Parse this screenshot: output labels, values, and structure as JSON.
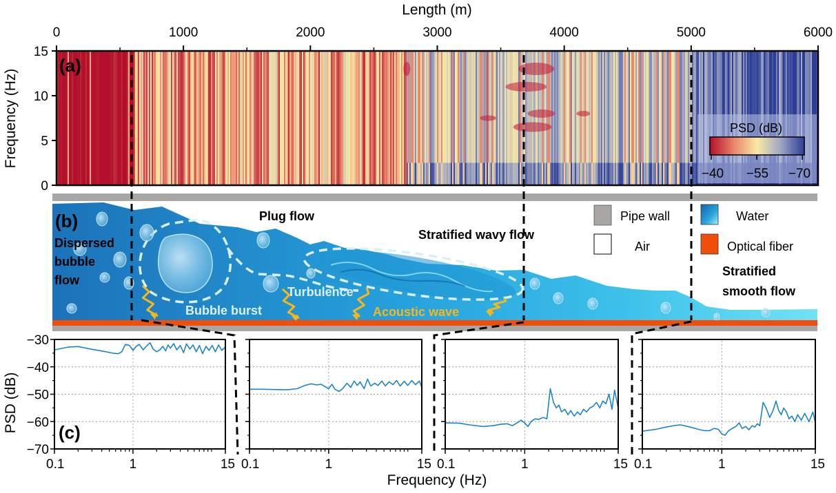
{
  "chart_data": [
    {
      "panel": "(a)",
      "type": "heatmap",
      "title": "",
      "xlabel": "Length (m)",
      "ylabel": "Frequency (Hz)",
      "xlim": [
        0,
        6000
      ],
      "ylim": [
        0,
        15
      ],
      "x_ticks": [
        "0",
        "1000",
        "2000",
        "3000",
        "4000",
        "5000",
        "6000"
      ],
      "x_tick_values": [
        0,
        1000,
        2000,
        3000,
        4000,
        5000,
        6000
      ],
      "x_minor_tick_values": [
        500,
        1500,
        2500,
        3500,
        4500,
        5500
      ],
      "y_ticks": [
        "0",
        "5",
        "10",
        "15"
      ],
      "y_tick_values": [
        0,
        5,
        10,
        15
      ],
      "colorbar": {
        "label": "PSD (dB)",
        "ticks": [
          "−40",
          "−55",
          "−70"
        ],
        "tick_values": [
          -40,
          -55,
          -70
        ],
        "range": [
          -40,
          -70
        ],
        "colors": [
          "#b2102b",
          "#e8826a",
          "#fbe9a6",
          "#9ea5c4",
          "#2c3d96"
        ]
      },
      "regions": [
        {
          "name": "Dispersed bubble flow",
          "x_range": [
            0,
            600
          ],
          "dominant_psd_db": -40
        },
        {
          "name": "Plug flow",
          "x_range": [
            600,
            2750
          ],
          "dominant_psd_db": -50
        },
        {
          "name": "Stratified wavy flow",
          "x_range": [
            2750,
            5000
          ],
          "dominant_psd_db": -60
        },
        {
          "name": "Stratified smooth flow",
          "x_range": [
            5000,
            6000
          ],
          "dominant_psd_db": -67
        }
      ],
      "boundaries_m": [
        600,
        2750,
        5000
      ]
    },
    {
      "panel": "(c)",
      "type": "line",
      "xlabel": "Frequency (Hz)",
      "ylabel": "PSD (dB)",
      "x_scale": "log",
      "xlim": [
        0.1,
        15
      ],
      "ylim": [
        -70,
        -30
      ],
      "x_ticks": [
        "0.1",
        "1",
        "15"
      ],
      "x_tick_values": [
        0.1,
        1,
        15
      ],
      "y_ticks": [
        "−30",
        "−40",
        "−50",
        "−60",
        "−70"
      ],
      "y_tick_values": [
        -30,
        -40,
        -50,
        -60,
        -70
      ],
      "grid": true,
      "series": [
        {
          "name": "Dispersed bubble flow",
          "color": "#1a86c8",
          "x": [
            0.1,
            0.15,
            0.2,
            0.3,
            0.4,
            0.55,
            0.65,
            0.72,
            0.8,
            0.9,
            1.0,
            1.1,
            1.2,
            1.35,
            1.5,
            1.65,
            1.8,
            2.0,
            2.2,
            2.4,
            2.6,
            2.8,
            3.0,
            3.3,
            3.6,
            4.0,
            4.4,
            4.8,
            5.3,
            5.8,
            6.4,
            7.0,
            7.7,
            8.5,
            9.3,
            10.2,
            11.2,
            12.3,
            13.5,
            15
          ],
          "y": [
            -33.8,
            -32.8,
            -32.6,
            -33.6,
            -34.2,
            -35.0,
            -35.2,
            -34.5,
            -31.8,
            -32.2,
            -34.0,
            -32.5,
            -31.8,
            -33.8,
            -32.3,
            -31.2,
            -33.5,
            -34.5,
            -33.8,
            -32.5,
            -34.2,
            -32.0,
            -33.2,
            -31.5,
            -33.8,
            -32.2,
            -34.8,
            -31.6,
            -33.5,
            -32.0,
            -34.5,
            -32.2,
            -35.2,
            -32.5,
            -34.0,
            -32.2,
            -34.5,
            -32.0,
            -34.0,
            -32.8
          ]
        },
        {
          "name": "Plug flow",
          "color": "#1a86c8",
          "x": [
            0.1,
            0.15,
            0.2,
            0.3,
            0.4,
            0.5,
            0.6,
            0.7,
            0.8,
            0.9,
            1.0,
            1.1,
            1.2,
            1.35,
            1.5,
            1.7,
            1.9,
            2.1,
            2.3,
            2.5,
            2.8,
            3.1,
            3.4,
            3.8,
            4.2,
            4.7,
            5.2,
            5.8,
            6.5,
            7.2,
            8.0,
            9.0,
            10.0,
            11.2,
            12.5,
            14.0,
            15
          ],
          "y": [
            -48.2,
            -48.2,
            -48.3,
            -48.4,
            -48.0,
            -46.8,
            -46.2,
            -46.6,
            -46.4,
            -47.2,
            -48.0,
            -46.4,
            -48.2,
            -49.0,
            -48.0,
            -46.0,
            -47.5,
            -45.2,
            -46.8,
            -45.5,
            -48.0,
            -44.5,
            -47.0,
            -46.0,
            -46.8,
            -45.2,
            -47.0,
            -45.5,
            -46.5,
            -45.0,
            -47.0,
            -45.3,
            -46.8,
            -45.0,
            -46.5,
            -45.2,
            -47.5
          ]
        },
        {
          "name": "Stratified wavy flow",
          "color": "#1a86c8",
          "x": [
            0.1,
            0.15,
            0.2,
            0.3,
            0.4,
            0.5,
            0.6,
            0.7,
            0.8,
            0.9,
            1.0,
            1.1,
            1.2,
            1.35,
            1.5,
            1.7,
            1.9,
            2.1,
            2.3,
            2.5,
            2.7,
            2.9,
            3.2,
            3.5,
            3.8,
            4.2,
            4.6,
            5.0,
            5.5,
            6.0,
            6.6,
            7.2,
            8.0,
            8.8,
            9.6,
            10.5,
            11.5,
            12.5,
            13.5,
            15
          ],
          "y": [
            -60.5,
            -60.6,
            -61.2,
            -61.8,
            -61.5,
            -61.0,
            -60.8,
            -61.5,
            -60.5,
            -59.5,
            -60.5,
            -61.8,
            -60.0,
            -59.0,
            -59.2,
            -58.5,
            -59.0,
            -48.0,
            -53.0,
            -55.0,
            -54.0,
            -56.5,
            -55.5,
            -57.5,
            -56.0,
            -58.0,
            -56.5,
            -57.5,
            -55.5,
            -56.5,
            -55.0,
            -54.5,
            -53.0,
            -55.0,
            -52.5,
            -53.5,
            -50.0,
            -55.5,
            -48.5,
            -55.0
          ]
        },
        {
          "name": "Stratified smooth flow",
          "color": "#1a86c8",
          "x": [
            0.1,
            0.15,
            0.2,
            0.25,
            0.3,
            0.4,
            0.5,
            0.6,
            0.7,
            0.8,
            0.9,
            1.0,
            1.1,
            1.2,
            1.35,
            1.5,
            1.65,
            1.8,
            2.0,
            2.2,
            2.4,
            2.6,
            2.8,
            3.0,
            3.3,
            3.6,
            4.0,
            4.4,
            4.8,
            5.2,
            5.6,
            6.0,
            6.5,
            7.0,
            7.6,
            8.3,
            9.0,
            10.0,
            11.0,
            12.5,
            14.0,
            15
          ],
          "y": [
            -63.5,
            -62.8,
            -62.0,
            -61.5,
            -61.2,
            -62.0,
            -62.8,
            -63.3,
            -63.3,
            -62.5,
            -62.8,
            -64.5,
            -65.0,
            -63.5,
            -62.5,
            -61.8,
            -60.5,
            -62.5,
            -61.8,
            -63.0,
            -61.5,
            -62.0,
            -60.8,
            -61.5,
            -53.0,
            -55.0,
            -58.5,
            -56.0,
            -52.5,
            -56.0,
            -57.5,
            -55.0,
            -56.5,
            -59.0,
            -58.0,
            -60.0,
            -57.5,
            -59.5,
            -57.0,
            -60.0,
            -56.5,
            -60.5
          ]
        }
      ]
    }
  ],
  "panel_a": {
    "tag": "(a)",
    "xlabel": "Length (m)",
    "ylabel": "Frequency (Hz)",
    "x_ticks": [
      "0",
      "1000",
      "2000",
      "3000",
      "4000",
      "5000",
      "6000"
    ],
    "y_ticks": [
      "0",
      "5",
      "10",
      "15"
    ],
    "colorbar_label": "PSD (dB)",
    "colorbar_ticks": [
      "−40",
      "−55",
      "−70"
    ]
  },
  "panel_b": {
    "tag": "(b)",
    "regions": {
      "dispersed": [
        "Dispersed",
        "bubble",
        "flow"
      ],
      "plug": "Plug flow",
      "wavy": "Stratified wavy flow",
      "smooth": [
        "Stratified",
        "smooth flow"
      ]
    },
    "annotations": {
      "bubble_burst": "Bubble burst",
      "turbulence": "Turbulence",
      "acoustic_wave": "Acoustic wave"
    },
    "legend": [
      {
        "label": "Pipe wall",
        "color": "#a9a6a6"
      },
      {
        "label": "Water",
        "color": "#1e88cf"
      },
      {
        "label": "Air",
        "color": "#ffffff"
      },
      {
        "label": "Optical fiber",
        "color": "#f04e0a"
      }
    ],
    "colors": {
      "pipe_wall": "#a9a6a6",
      "water_dark": "#1c72b8",
      "water_mid": "#2aa6de",
      "water_light": "#62dcf2",
      "fiber": "#f04e0a",
      "acoustic": "#f5b81c"
    }
  },
  "panel_c": {
    "tag": "(c)",
    "xlabel": "Frequency (Hz)",
    "ylabel": "PSD (dB)",
    "x_ticks": [
      "0.1",
      "1",
      "15"
    ],
    "y_ticks": [
      "−30",
      "−40",
      "−50",
      "−60",
      "−70"
    ],
    "line_color": "#1a86c8"
  }
}
